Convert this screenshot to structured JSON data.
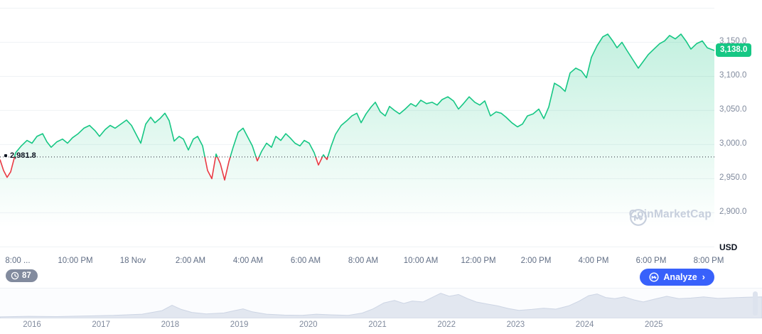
{
  "page": {
    "watermark": "CoinMarketCap",
    "history_badge": {
      "count": "87"
    },
    "analyze_button": {
      "label": "Analyze",
      "chevron": "›"
    }
  },
  "colors": {
    "up": "#16c784",
    "down": "#ea3943",
    "grid": "#eff2f5",
    "axis_text": "#808a9d",
    "reference_line": "#222531",
    "badge_green": "#16c784",
    "analyze_blue": "#3861fb",
    "navigator_fill": "#e2e7f0",
    "navigator_stroke": "#cdd5e4"
  },
  "chart_data": [
    {
      "type": "line",
      "unit": "USD",
      "current_price": 3138.0,
      "current_price_label": "3,138.0",
      "reference_price": 2981.8,
      "reference_price_label": "2,981.8",
      "y_range": [
        2842,
        3212
      ],
      "x_extent": 1005,
      "grid": true,
      "legend": "none",
      "y_gridlines": [
        {
          "value": 3200,
          "label": ""
        },
        {
          "value": 3150,
          "label": "3,150.0"
        },
        {
          "value": 3100,
          "label": "3,100.0"
        },
        {
          "value": 3050,
          "label": "3,050.0"
        },
        {
          "value": 3000,
          "label": "3,000.0"
        },
        {
          "value": 2950,
          "label": "2,950.0"
        },
        {
          "value": 2900,
          "label": "2,900.0"
        },
        {
          "value": 2850,
          "label": ""
        }
      ],
      "x_ticks": [
        "8:00 ...",
        "10:00 PM",
        "18 Nov",
        "2:00 AM",
        "4:00 AM",
        "6:00 AM",
        "8:00 AM",
        "10:00 AM",
        "12:00 PM",
        "2:00 PM",
        "4:00 PM",
        "6:00 PM",
        "8:00 PM"
      ],
      "points": [
        [
          0,
          2978
        ],
        [
          5,
          2962
        ],
        [
          10,
          2952
        ],
        [
          15,
          2960
        ],
        [
          22,
          2988
        ],
        [
          30,
          2998
        ],
        [
          38,
          3006
        ],
        [
          45,
          3002
        ],
        [
          52,
          3012
        ],
        [
          60,
          3016
        ],
        [
          66,
          3004
        ],
        [
          72,
          2996
        ],
        [
          80,
          3004
        ],
        [
          88,
          3008
        ],
        [
          95,
          3002
        ],
        [
          102,
          3010
        ],
        [
          110,
          3016
        ],
        [
          118,
          3024
        ],
        [
          126,
          3028
        ],
        [
          134,
          3020
        ],
        [
          140,
          3012
        ],
        [
          148,
          3022
        ],
        [
          155,
          3028
        ],
        [
          162,
          3024
        ],
        [
          170,
          3030
        ],
        [
          178,
          3036
        ],
        [
          185,
          3028
        ],
        [
          192,
          3014
        ],
        [
          198,
          3002
        ],
        [
          205,
          3030
        ],
        [
          212,
          3040
        ],
        [
          218,
          3032
        ],
        [
          225,
          3038
        ],
        [
          232,
          3046
        ],
        [
          238,
          3035
        ],
        [
          245,
          3005
        ],
        [
          252,
          3012
        ],
        [
          258,
          3008
        ],
        [
          265,
          2992
        ],
        [
          272,
          3008
        ],
        [
          278,
          3012
        ],
        [
          285,
          2998
        ],
        [
          292,
          2962
        ],
        [
          298,
          2950
        ],
        [
          304,
          2986
        ],
        [
          310,
          2972
        ],
        [
          316,
          2948
        ],
        [
          322,
          2975
        ],
        [
          328,
          2996
        ],
        [
          335,
          3018
        ],
        [
          342,
          3024
        ],
        [
          348,
          3012
        ],
        [
          355,
          2998
        ],
        [
          362,
          2976
        ],
        [
          368,
          2990
        ],
        [
          375,
          3002
        ],
        [
          382,
          2996
        ],
        [
          388,
          3012
        ],
        [
          395,
          3006
        ],
        [
          402,
          3016
        ],
        [
          408,
          3010
        ],
        [
          415,
          3002
        ],
        [
          422,
          2998
        ],
        [
          428,
          3006
        ],
        [
          435,
          3002
        ],
        [
          442,
          2988
        ],
        [
          448,
          2970
        ],
        [
          455,
          2985
        ],
        [
          460,
          2978
        ],
        [
          466,
          2998
        ],
        [
          472,
          3015
        ],
        [
          480,
          3028
        ],
        [
          488,
          3035
        ],
        [
          495,
          3042
        ],
        [
          502,
          3046
        ],
        [
          508,
          3032
        ],
        [
          515,
          3045
        ],
        [
          522,
          3055
        ],
        [
          528,
          3062
        ],
        [
          535,
          3048
        ],
        [
          542,
          3042
        ],
        [
          548,
          3056
        ],
        [
          555,
          3050
        ],
        [
          562,
          3045
        ],
        [
          570,
          3052
        ],
        [
          578,
          3060
        ],
        [
          585,
          3056
        ],
        [
          592,
          3065
        ],
        [
          600,
          3060
        ],
        [
          608,
          3062
        ],
        [
          615,
          3058
        ],
        [
          622,
          3066
        ],
        [
          630,
          3070
        ],
        [
          638,
          3064
        ],
        [
          645,
          3052
        ],
        [
          652,
          3060
        ],
        [
          660,
          3070
        ],
        [
          668,
          3062
        ],
        [
          675,
          3058
        ],
        [
          682,
          3064
        ],
        [
          690,
          3042
        ],
        [
          698,
          3048
        ],
        [
          705,
          3046
        ],
        [
          712,
          3040
        ],
        [
          720,
          3032
        ],
        [
          728,
          3026
        ],
        [
          735,
          3030
        ],
        [
          742,
          3042
        ],
        [
          750,
          3045
        ],
        [
          758,
          3052
        ],
        [
          765,
          3038
        ],
        [
          772,
          3055
        ],
        [
          780,
          3090
        ],
        [
          788,
          3085
        ],
        [
          795,
          3078
        ],
        [
          802,
          3105
        ],
        [
          810,
          3112
        ],
        [
          818,
          3108
        ],
        [
          825,
          3098
        ],
        [
          832,
          3128
        ],
        [
          840,
          3145
        ],
        [
          848,
          3158
        ],
        [
          855,
          3162
        ],
        [
          862,
          3152
        ],
        [
          868,
          3142
        ],
        [
          875,
          3150
        ],
        [
          882,
          3138
        ],
        [
          890,
          3125
        ],
        [
          898,
          3112
        ],
        [
          905,
          3122
        ],
        [
          912,
          3132
        ],
        [
          920,
          3140
        ],
        [
          928,
          3148
        ],
        [
          935,
          3152
        ],
        [
          942,
          3160
        ],
        [
          950,
          3155
        ],
        [
          958,
          3162
        ],
        [
          965,
          3152
        ],
        [
          972,
          3140
        ],
        [
          980,
          3148
        ],
        [
          988,
          3152
        ],
        [
          995,
          3142
        ],
        [
          1005,
          3138
        ]
      ]
    },
    {
      "type": "area",
      "x_extent": 1072,
      "categories": [
        "2016",
        "2017",
        "2018",
        "2019",
        "2020",
        "2021",
        "2022",
        "2023",
        "2024",
        "2025"
      ],
      "points": [
        [
          0,
          0.05
        ],
        [
          40,
          0.07
        ],
        [
          80,
          0.06
        ],
        [
          120,
          0.08
        ],
        [
          160,
          0.1
        ],
        [
          200,
          0.14
        ],
        [
          228,
          0.26
        ],
        [
          242,
          0.44
        ],
        [
          255,
          0.3
        ],
        [
          270,
          0.2
        ],
        [
          290,
          0.15
        ],
        [
          315,
          0.18
        ],
        [
          330,
          0.26
        ],
        [
          342,
          0.32
        ],
        [
          355,
          0.22
        ],
        [
          375,
          0.14
        ],
        [
          400,
          0.11
        ],
        [
          425,
          0.1
        ],
        [
          445,
          0.14
        ],
        [
          465,
          0.12
        ],
        [
          490,
          0.1
        ],
        [
          510,
          0.18
        ],
        [
          525,
          0.32
        ],
        [
          540,
          0.52
        ],
        [
          555,
          0.6
        ],
        [
          568,
          0.5
        ],
        [
          580,
          0.58
        ],
        [
          595,
          0.55
        ],
        [
          608,
          0.7
        ],
        [
          620,
          0.84
        ],
        [
          632,
          0.74
        ],
        [
          645,
          0.8
        ],
        [
          658,
          0.66
        ],
        [
          670,
          0.55
        ],
        [
          685,
          0.48
        ],
        [
          700,
          0.42
        ],
        [
          715,
          0.33
        ],
        [
          730,
          0.27
        ],
        [
          748,
          0.3
        ],
        [
          765,
          0.34
        ],
        [
          782,
          0.31
        ],
        [
          800,
          0.42
        ],
        [
          815,
          0.58
        ],
        [
          828,
          0.76
        ],
        [
          840,
          0.82
        ],
        [
          852,
          0.7
        ],
        [
          865,
          0.66
        ],
        [
          878,
          0.72
        ],
        [
          892,
          0.62
        ],
        [
          905,
          0.55
        ],
        [
          920,
          0.64
        ],
        [
          938,
          0.74
        ],
        [
          955,
          0.66
        ],
        [
          972,
          0.68
        ],
        [
          990,
          0.72
        ],
        [
          1010,
          0.67
        ],
        [
          1030,
          0.69
        ],
        [
          1050,
          0.71
        ],
        [
          1072,
          0.72
        ]
      ]
    }
  ]
}
